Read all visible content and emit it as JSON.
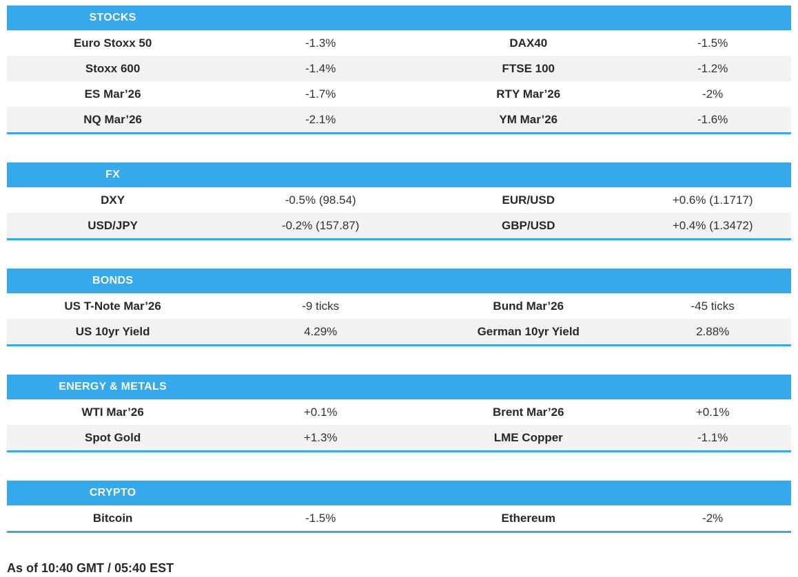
{
  "colors": {
    "accent": "#35A9EC",
    "stripe": "#F2F2F2",
    "text": "#26282B"
  },
  "sections": [
    {
      "title": "STOCKS",
      "rows": [
        {
          "cells": [
            "Euro Stoxx 50",
            "-1.3%",
            "DAX40",
            "-1.5%"
          ]
        },
        {
          "cells": [
            "Stoxx 600",
            "-1.4%",
            "FTSE 100",
            "-1.2%"
          ]
        },
        {
          "cells": [
            "ES Mar’26",
            "-1.7%",
            "RTY Mar’26",
            "-2%"
          ]
        },
        {
          "cells": [
            "NQ Mar’26",
            "-2.1%",
            "YM Mar’26",
            "-1.6%"
          ]
        }
      ]
    },
    {
      "title": "FX",
      "rows": [
        {
          "cells": [
            "DXY",
            "-0.5% (98.54)",
            "EUR/USD",
            "+0.6% (1.1717)"
          ]
        },
        {
          "cells": [
            "USD/JPY",
            "-0.2% (157.87)",
            "GBP/USD",
            "+0.4% (1.3472)"
          ]
        }
      ]
    },
    {
      "title": "BONDS",
      "rows": [
        {
          "cells": [
            "US T-Note Mar’26",
            "-9 ticks",
            "Bund Mar’26",
            "-45 ticks"
          ]
        },
        {
          "cells": [
            "US 10yr Yield",
            "4.29%",
            "German 10yr Yield",
            "2.88%"
          ]
        }
      ]
    },
    {
      "title": "ENERGY & METALS",
      "rows": [
        {
          "cells": [
            "WTI Mar’26",
            "+0.1%",
            "Brent Mar’26",
            "+0.1%"
          ]
        },
        {
          "cells": [
            "Spot Gold",
            "+1.3%",
            "LME Copper",
            "-1.1%"
          ]
        }
      ]
    },
    {
      "title": "CRYPTO",
      "rows": [
        {
          "cells": [
            "Bitcoin",
            "-1.5%",
            "Ethereum",
            "-2%"
          ]
        }
      ]
    }
  ],
  "footer": {
    "as_of": "As of 10:40 GMT / 05:40 EST"
  }
}
